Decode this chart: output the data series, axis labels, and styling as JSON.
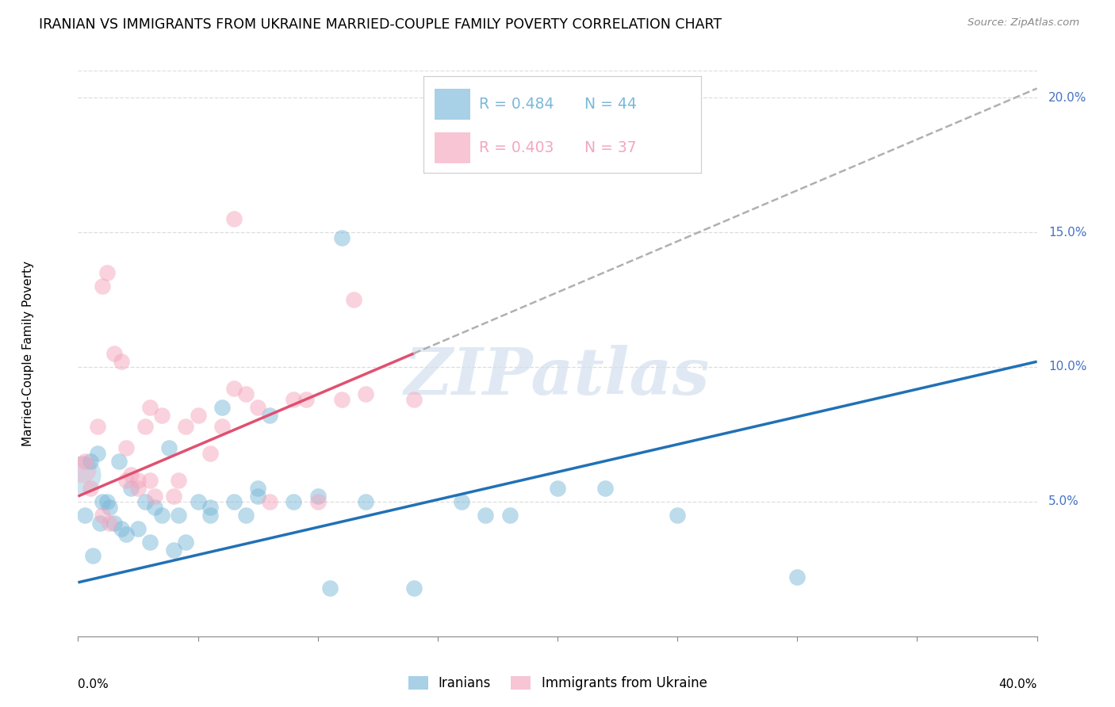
{
  "title": "IRANIAN VS IMMIGRANTS FROM UKRAINE MARRIED-COUPLE FAMILY POVERTY CORRELATION CHART",
  "source": "Source: ZipAtlas.com",
  "ylabel": "Married-Couple Family Poverty",
  "R1": 0.484,
  "N1": 44,
  "R2": 0.403,
  "N2": 37,
  "color1": "#7ab8d9",
  "color2": "#f4a6be",
  "line_color1": "#2171b5",
  "line_color2": "#e05070",
  "legend1_label": "Iranians",
  "legend2_label": "Immigrants from Ukraine",
  "watermark": "ZIPatlas",
  "xlim": [
    0,
    40
  ],
  "ylim": [
    0,
    21
  ],
  "blue_line_x0": 0,
  "blue_line_y0": 2.0,
  "blue_line_x1": 40,
  "blue_line_y1": 10.2,
  "pink_line_x0": 0,
  "pink_line_y0": 5.2,
  "pink_line_x1": 14,
  "pink_line_y1": 10.5,
  "iranians_x": [
    0.5,
    0.8,
    1.0,
    1.5,
    2.0,
    2.5,
    3.0,
    3.5,
    4.0,
    4.5,
    5.0,
    5.5,
    6.0,
    6.5,
    7.0,
    7.5,
    8.0,
    9.0,
    10.0,
    11.0,
    12.0,
    14.0,
    16.0,
    17.0,
    18.0,
    20.0,
    22.0,
    25.0,
    30.0,
    1.2,
    1.8,
    2.2,
    2.8,
    3.2,
    3.8,
    4.2,
    5.5,
    7.5,
    10.5,
    0.3,
    0.6,
    0.9,
    1.3,
    1.7
  ],
  "iranians_y": [
    6.5,
    6.8,
    5.0,
    4.2,
    3.8,
    4.0,
    3.5,
    4.5,
    3.2,
    3.5,
    5.0,
    4.8,
    8.5,
    5.0,
    4.5,
    5.2,
    8.2,
    5.0,
    5.2,
    14.8,
    5.0,
    1.8,
    5.0,
    4.5,
    4.5,
    5.5,
    5.5,
    4.5,
    2.2,
    5.0,
    4.0,
    5.5,
    5.0,
    4.8,
    7.0,
    4.5,
    4.5,
    5.5,
    1.8,
    4.5,
    3.0,
    4.2,
    4.8,
    6.5
  ],
  "ukraine_x": [
    0.5,
    0.8,
    1.0,
    1.2,
    1.5,
    1.8,
    2.0,
    2.2,
    2.5,
    2.8,
    3.0,
    3.2,
    3.5,
    4.0,
    4.5,
    5.0,
    5.5,
    6.0,
    6.5,
    7.0,
    7.5,
    8.0,
    9.0,
    10.0,
    11.0,
    12.0,
    14.0,
    1.0,
    1.3,
    2.0,
    2.5,
    3.0,
    4.2,
    6.5,
    9.5,
    11.5,
    0.3
  ],
  "ukraine_y": [
    5.5,
    7.8,
    13.0,
    13.5,
    10.5,
    10.2,
    7.0,
    6.0,
    5.8,
    7.8,
    8.5,
    5.2,
    8.2,
    5.2,
    7.8,
    8.2,
    6.8,
    7.8,
    9.2,
    9.0,
    8.5,
    5.0,
    8.8,
    5.0,
    8.8,
    9.0,
    8.8,
    4.5,
    4.2,
    5.8,
    5.5,
    5.8,
    5.8,
    15.5,
    8.8,
    12.5,
    6.5
  ]
}
